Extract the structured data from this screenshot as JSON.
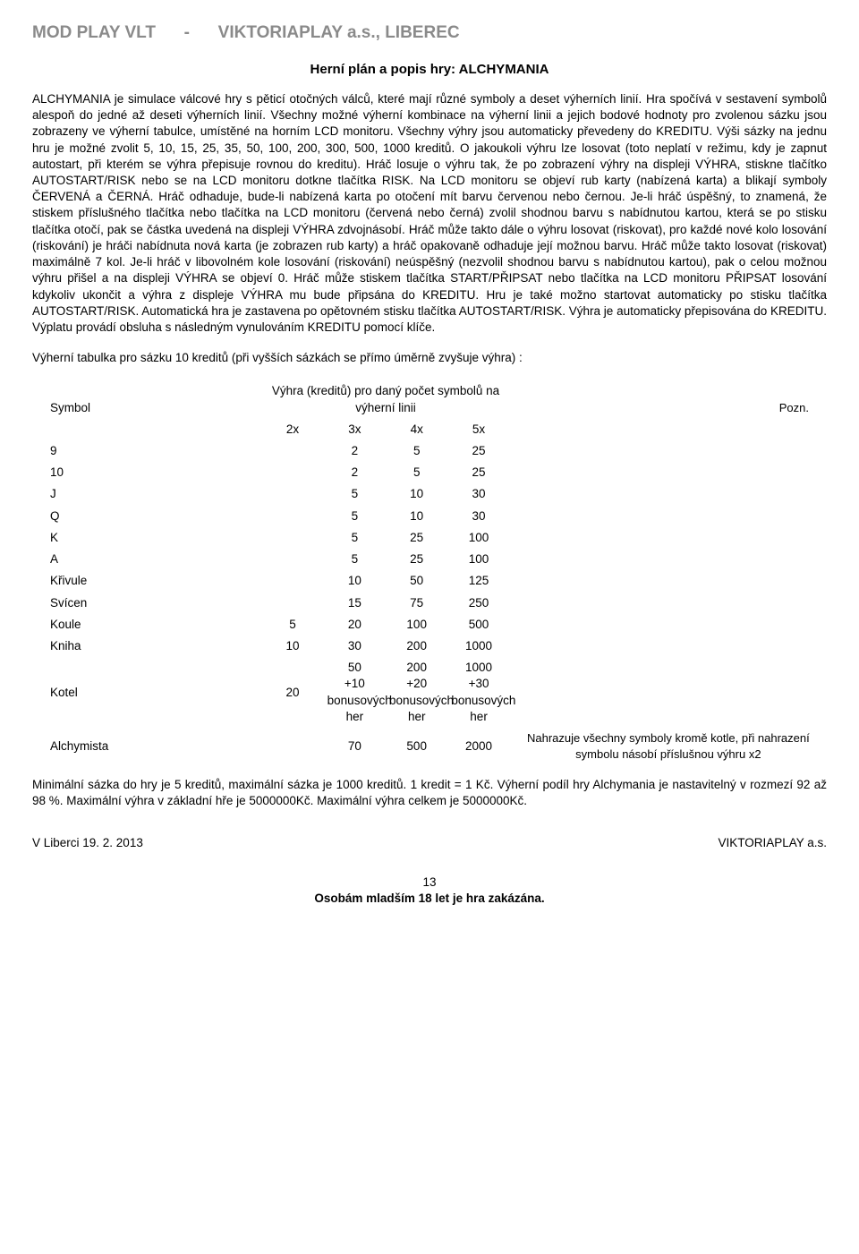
{
  "header": {
    "left": "MOD PLAY VLT",
    "sep": "-",
    "right": "VIKTORIAPLAY a.s., LIBEREC"
  },
  "subtitle": "Herní plán a popis hry: ALCHYMANIA",
  "body": "ALCHYMANIA je simulace válcové hry s pěticí otočných válců, které mají různé symboly a deset výherních linií. Hra spočívá v sestavení symbolů alespoň do jedné až deseti výherních linií. Všechny možné výherní kombinace na výherní linii a jejich bodové hodnoty pro zvolenou sázku jsou zobrazeny ve výherní tabulce, umístěné na horním LCD monitoru. Všechny výhry jsou automaticky převedeny do KREDITU. Výši sázky na jednu hru je možné zvolit 5, 10, 15, 25, 35, 50, 100, 200, 300, 500, 1000 kreditů. O jakoukoli výhru lze losovat (toto neplatí v režimu, kdy je zapnut autostart, při kterém se výhra přepisuje rovnou do kreditu). Hráč losuje o výhru tak, že po zobrazení výhry na displeji VÝHRA, stiskne tlačítko AUTOSTART/RISK nebo se na LCD monitoru dotkne tlačítka RISK. Na LCD monitoru se objeví rub karty (nabízená karta) a blikají symboly ČERVENÁ a ČERNÁ. Hráč odhaduje, bude-li nabízená karta po otočení mít barvu červenou nebo černou. Je-li hráč úspěšný, to znamená, že stiskem příslušného tlačítka nebo tlačítka na LCD monitoru (červená nebo černá) zvolil shodnou barvu s nabídnutou kartou, která se po stisku tlačítka otočí, pak se částka uvedená na displeji VÝHRA zdvojnásobí. Hráč může takto dále o výhru losovat (riskovat), pro každé nové kolo losování (riskování) je hráči nabídnuta nová karta (je zobrazen rub karty) a hráč opakovaně odhaduje její možnou barvu. Hráč může takto losovat (riskovat) maximálně 7 kol. Je-li hráč v libovolném kole losování (riskování) neúspěšný (nezvolil shodnou barvu s nabídnutou kartou), pak o celou možnou výhru přišel a na displeji VÝHRA se objeví 0. Hráč může stiskem tlačítka START/PŘIPSAT nebo tlačítka na LCD monitoru PŘIPSAT losování kdykoliv ukončit a výhra z displeje VÝHRA mu bude připsána do KREDITU. Hru je také možno startovat automaticky po stisku tlačítka AUTOSTART/RISK. Automatická hra je zastavena po opětovném stisku tlačítka AUTOSTART/RISK. Výhra je automaticky přepisována do KREDITU. Výplatu provádí obsluha s následným vynulováním KREDITU pomocí klíče.",
  "table_caption": "Výherní tabulka pro sázku 10 kreditů (při vyšších sázkách se přímo úměrně zvyšuje výhra) :",
  "table": {
    "group_header": "Výhra (kreditů) pro daný počet symbolů na výherní linii",
    "col_symbol": "Symbol",
    "col_note": "Pozn.",
    "cols": [
      "2x",
      "3x",
      "4x",
      "5x"
    ],
    "rows": [
      {
        "s": "9",
        "v": [
          "",
          "2",
          "5",
          "25"
        ],
        "n": ""
      },
      {
        "s": "10",
        "v": [
          "",
          "2",
          "5",
          "25"
        ],
        "n": ""
      },
      {
        "s": "J",
        "v": [
          "",
          "5",
          "10",
          "30"
        ],
        "n": ""
      },
      {
        "s": "Q",
        "v": [
          "",
          "5",
          "10",
          "30"
        ],
        "n": ""
      },
      {
        "s": "K",
        "v": [
          "",
          "5",
          "25",
          "100"
        ],
        "n": ""
      },
      {
        "s": "A",
        "v": [
          "",
          "5",
          "25",
          "100"
        ],
        "n": ""
      },
      {
        "s": "Křivule",
        "v": [
          "",
          "10",
          "50",
          "125"
        ],
        "n": ""
      },
      {
        "s": "Svícen",
        "v": [
          "",
          "15",
          "75",
          "250"
        ],
        "n": ""
      },
      {
        "s": "Koule",
        "v": [
          "5",
          "20",
          "100",
          "500"
        ],
        "n": ""
      },
      {
        "s": "Kniha",
        "v": [
          "10",
          "30",
          "200",
          "1000"
        ],
        "n": ""
      },
      {
        "s": "Kotel",
        "v": [
          "20",
          "50\n+10 bonusových her",
          "200\n+20 bonusových her",
          "1000\n+30 bonusových her"
        ],
        "n": ""
      },
      {
        "s": "Alchymista",
        "v": [
          "",
          "70",
          "500",
          "2000"
        ],
        "n": "Nahrazuje všechny symboly kromě kotle, při nahrazení symbolu násobí příslušnou výhru x2"
      }
    ]
  },
  "footer_text": "Minimální sázka do hry je 5 kreditů, maximální sázka je 1000 kreditů. 1 kredit = 1 Kč. Výherní podíl hry Alchymania je nastavitelný v rozmezí 92 až 98 %. Maximální výhra v základní hře je 5000000Kč. Maximální výhra celkem je 5000000Kč.",
  "sig": {
    "left": "V Liberci 19. 2. 2013",
    "right": "VIKTORIAPLAY a.s."
  },
  "page": {
    "num": "13",
    "warn": "Osobám mladším 18 let je hra zakázána."
  }
}
